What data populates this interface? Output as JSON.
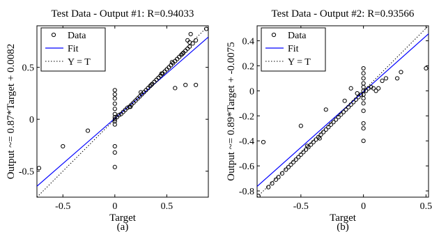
{
  "chart_data": [
    {
      "type": "scatter",
      "panel": "(a)",
      "title": "Test Data - Output #1: R=0.94033",
      "xlabel": "Target",
      "ylabel": "Output ~= 0.87*Target + 0.0082",
      "xlim": [
        -0.75,
        0.9
      ],
      "ylim": [
        -0.75,
        0.9
      ],
      "xticks": [
        -0.5,
        0,
        0.5
      ],
      "xtick_labels": [
        "-0.5",
        "0",
        "0.5"
      ],
      "yticks": [
        -0.5,
        0,
        0.5
      ],
      "ytick_labels": [
        "-0.5",
        "0",
        "0.5"
      ],
      "grid": false,
      "legend": {
        "position": "top-left",
        "entries": [
          "Data",
          "Fit",
          "Y = T"
        ]
      },
      "fit": {
        "slope": 0.87,
        "intercept": 0.0082
      },
      "series": [
        {
          "name": "Data",
          "points": [
            [
              0.0,
              0.28
            ],
            [
              0.0,
              0.2
            ],
            [
              0.0,
              0.1
            ],
            [
              0.0,
              0.05
            ],
            [
              0.0,
              0.02
            ],
            [
              0.0,
              0.0
            ],
            [
              0.0,
              -0.02
            ],
            [
              0.0,
              -0.05
            ],
            [
              0.0,
              -0.26
            ],
            [
              0.0,
              -0.32
            ],
            [
              0.0,
              -0.46
            ],
            [
              0.0,
              0.15
            ],
            [
              0.0,
              0.24
            ],
            [
              0.02,
              0.02
            ],
            [
              0.04,
              0.04
            ],
            [
              0.06,
              0.05
            ],
            [
              0.08,
              0.07
            ],
            [
              0.1,
              0.09
            ],
            [
              0.12,
              0.11
            ],
            [
              0.14,
              0.12
            ],
            [
              0.16,
              0.14
            ],
            [
              0.18,
              0.16
            ],
            [
              0.2,
              0.18
            ],
            [
              0.22,
              0.2
            ],
            [
              0.24,
              0.22
            ],
            [
              0.26,
              0.24
            ],
            [
              0.28,
              0.26
            ],
            [
              0.3,
              0.28
            ],
            [
              0.32,
              0.3
            ],
            [
              0.34,
              0.32
            ],
            [
              0.36,
              0.34
            ],
            [
              0.38,
              0.36
            ],
            [
              0.4,
              0.38
            ],
            [
              0.42,
              0.4
            ],
            [
              0.44,
              0.42
            ],
            [
              0.46,
              0.44
            ],
            [
              0.48,
              0.46
            ],
            [
              0.5,
              0.48
            ],
            [
              0.52,
              0.5
            ],
            [
              0.54,
              0.52
            ],
            [
              0.56,
              0.54
            ],
            [
              0.58,
              0.56
            ],
            [
              0.6,
              0.58
            ],
            [
              0.62,
              0.6
            ],
            [
              0.64,
              0.62
            ],
            [
              0.66,
              0.64
            ],
            [
              0.68,
              0.66
            ],
            [
              0.7,
              0.68
            ],
            [
              0.72,
              0.7
            ],
            [
              0.75,
              0.73
            ],
            [
              0.78,
              0.76
            ],
            [
              0.88,
              0.87
            ],
            [
              0.15,
              0.12
            ],
            [
              0.25,
              0.26
            ],
            [
              0.35,
              0.33
            ],
            [
              0.45,
              0.44
            ],
            [
              0.55,
              0.55
            ],
            [
              0.65,
              0.63
            ],
            [
              0.72,
              0.74
            ],
            [
              0.73,
              0.82
            ],
            [
              0.7,
              0.76
            ],
            [
              0.68,
              0.33
            ],
            [
              0.58,
              0.3
            ],
            [
              0.78,
              0.33
            ],
            [
              -0.26,
              -0.11
            ],
            [
              -0.5,
              -0.26
            ],
            [
              -0.73,
              -0.47
            ]
          ]
        }
      ]
    },
    {
      "type": "scatter",
      "panel": "(b)",
      "title": "Test Data - Output #2: R=0.93566",
      "xlabel": "Target",
      "ylabel": "Output ~= 0.89*Target + -0.0075",
      "xlim": [
        -0.85,
        0.52
      ],
      "ylim": [
        -0.85,
        0.52
      ],
      "xticks": [
        -0.5,
        0,
        0.5
      ],
      "xtick_labels": [
        "-0.5",
        "0",
        "0.5"
      ],
      "yticks": [
        -0.8,
        -0.6,
        -0.4,
        -0.2,
        0,
        0.2,
        0.4
      ],
      "ytick_labels": [
        "-0.8",
        "-0.6",
        "-0.4",
        "-0.2",
        "0",
        "0.2",
        "0.4"
      ],
      "grid": false,
      "legend": {
        "position": "top-left",
        "entries": [
          "Data",
          "Fit",
          "Y = T"
        ]
      },
      "fit": {
        "slope": 0.89,
        "intercept": -0.0075
      },
      "series": [
        {
          "name": "Data",
          "points": [
            [
              0.0,
              0.18
            ],
            [
              0.0,
              0.14
            ],
            [
              0.0,
              0.1
            ],
            [
              0.0,
              0.06
            ],
            [
              0.0,
              0.03
            ],
            [
              0.0,
              0.0
            ],
            [
              0.0,
              -0.03
            ],
            [
              0.0,
              -0.06
            ],
            [
              0.0,
              -0.1
            ],
            [
              0.0,
              -0.16
            ],
            [
              0.0,
              -0.26
            ],
            [
              0.0,
              -0.3
            ],
            [
              0.0,
              -0.4
            ],
            [
              0.02,
              0.0
            ],
            [
              0.04,
              0.02
            ],
            [
              0.06,
              0.03
            ],
            [
              0.08,
              0.02
            ],
            [
              0.1,
              0.0
            ],
            [
              0.12,
              0.02
            ],
            [
              -0.02,
              -0.03
            ],
            [
              -0.04,
              -0.05
            ],
            [
              -0.06,
              -0.07
            ],
            [
              -0.08,
              -0.09
            ],
            [
              -0.1,
              -0.11
            ],
            [
              -0.12,
              -0.13
            ],
            [
              -0.14,
              -0.15
            ],
            [
              -0.16,
              -0.17
            ],
            [
              -0.18,
              -0.19
            ],
            [
              -0.2,
              -0.21
            ],
            [
              -0.22,
              -0.23
            ],
            [
              -0.24,
              -0.25
            ],
            [
              -0.26,
              -0.27
            ],
            [
              -0.28,
              -0.29
            ],
            [
              -0.3,
              -0.31
            ],
            [
              -0.32,
              -0.33
            ],
            [
              -0.34,
              -0.35
            ],
            [
              -0.36,
              -0.37
            ],
            [
              -0.38,
              -0.39
            ],
            [
              -0.4,
              -0.41
            ],
            [
              -0.42,
              -0.43
            ],
            [
              -0.44,
              -0.45
            ],
            [
              -0.46,
              -0.47
            ],
            [
              -0.48,
              -0.49
            ],
            [
              -0.5,
              -0.51
            ],
            [
              -0.52,
              -0.53
            ],
            [
              -0.54,
              -0.55
            ],
            [
              -0.56,
              -0.57
            ],
            [
              -0.58,
              -0.59
            ],
            [
              -0.6,
              -0.61
            ],
            [
              -0.62,
              -0.63
            ],
            [
              -0.65,
              -0.66
            ],
            [
              -0.68,
              -0.69
            ],
            [
              -0.7,
              -0.71
            ],
            [
              -0.73,
              -0.74
            ],
            [
              -0.76,
              -0.77
            ],
            [
              -0.84,
              -0.84
            ],
            [
              -0.3,
              -0.15
            ],
            [
              -0.5,
              -0.28
            ],
            [
              -0.8,
              -0.41
            ],
            [
              -0.1,
              0.02
            ],
            [
              -0.15,
              -0.08
            ],
            [
              -0.35,
              -0.38
            ],
            [
              -0.45,
              -0.44
            ],
            [
              0.27,
              0.1
            ],
            [
              0.18,
              0.1
            ],
            [
              0.15,
              0.08
            ],
            [
              0.3,
              0.15
            ],
            [
              0.5,
              0.18
            ],
            [
              -0.05,
              -0.02
            ]
          ]
        }
      ]
    }
  ],
  "captions": [
    "(a)",
    "(b)"
  ]
}
